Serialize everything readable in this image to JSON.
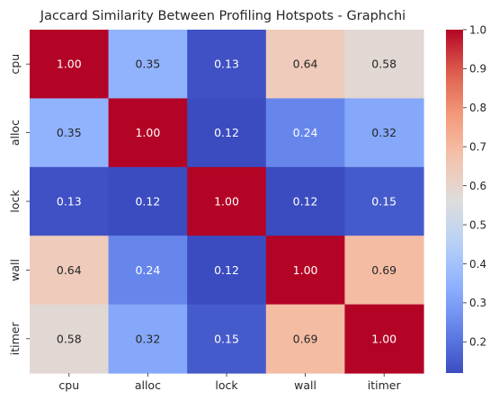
{
  "chart_data": {
    "type": "heatmap",
    "title": "Jaccard Similarity Between Profiling Hotspots - Graphchi",
    "xlabel": "",
    "ylabel": "",
    "x_categories": [
      "cpu",
      "alloc",
      "lock",
      "wall",
      "itimer"
    ],
    "y_categories": [
      "cpu",
      "alloc",
      "lock",
      "wall",
      "itimer"
    ],
    "values": [
      [
        1.0,
        0.35,
        0.13,
        0.64,
        0.58
      ],
      [
        0.35,
        1.0,
        0.12,
        0.24,
        0.32
      ],
      [
        0.13,
        0.12,
        1.0,
        0.12,
        0.15
      ],
      [
        0.64,
        0.24,
        0.12,
        1.0,
        0.69
      ],
      [
        0.58,
        0.32,
        0.15,
        0.69,
        1.0
      ]
    ],
    "annotation_format": "0.00",
    "colormap": "coolwarm",
    "colorbar": {
      "min": 0.12,
      "max": 1.0,
      "ticks": [
        "0.2",
        "0.3",
        "0.4",
        "0.5",
        "0.6",
        "0.7",
        "0.8",
        "0.9",
        "1.0"
      ]
    },
    "grid": false
  }
}
